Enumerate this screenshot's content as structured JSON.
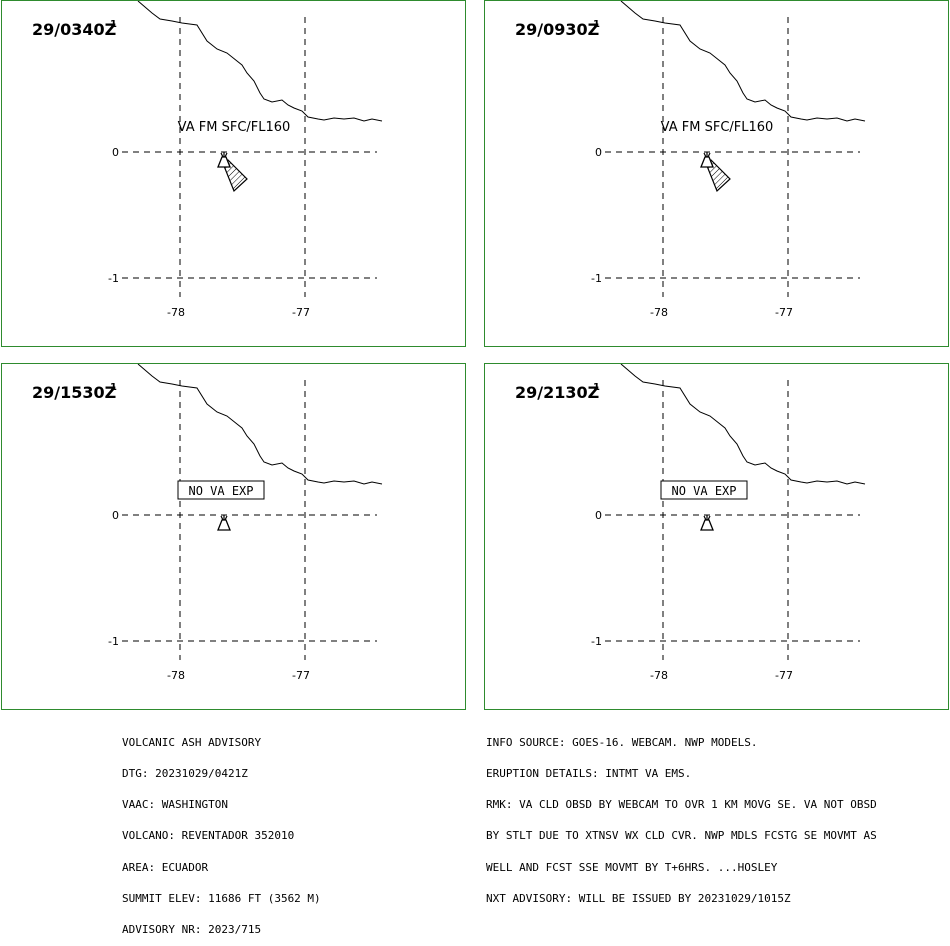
{
  "panels": [
    {
      "time": "29/0340Z",
      "superscript": "1",
      "label": "VA FM SFC/FL160",
      "label_type": "plain",
      "ash_cloud": true
    },
    {
      "time": "29/0930Z",
      "superscript": "1",
      "label": "VA FM SFC/FL160",
      "label_type": "plain",
      "ash_cloud": true
    },
    {
      "time": "29/1530Z",
      "superscript": "1",
      "label": "NO VA EXP",
      "label_type": "boxed",
      "ash_cloud": false
    },
    {
      "time": "29/2130Z",
      "superscript": "1",
      "label": "NO VA EXP",
      "label_type": "boxed",
      "ash_cloud": false
    }
  ],
  "grid": {
    "lat_labels": [
      "0",
      "-1"
    ],
    "lon_labels": [
      "-78",
      "-77"
    ]
  },
  "advisory_left": [
    "VOLCANIC ASH ADVISORY",
    "DTG: 20231029/0421Z",
    "VAAC: WASHINGTON",
    "VOLCANO: REVENTADOR 352010",
    "AREA: ECUADOR",
    "SUMMIT ELEV: 11686 FT (3562 M)",
    "ADVISORY NR: 2023/715"
  ],
  "advisory_right": [
    "INFO SOURCE: GOES-16. WEBCAM. NWP MODELS.",
    "ERUPTION DETAILS: INTMT VA EMS.",
    "RMK: VA CLD OBSD BY WEBCAM TO OVR 1 KM MOVG SE. VA NOT OBSD",
    "BY STLT DUE TO XTNSV WX CLD CVR. NWP MDLS FCSTG SE MOVMT AS",
    "WELL AND FCST SSE MOVMT BY T+6HRS. ...HOSLEY",
    "NXT ADVISORY: WILL BE ISSUED BY 20231029/1015Z"
  ],
  "colors": {
    "panel_border": "#2e8b2e",
    "ink": "#000000"
  },
  "icons": {
    "volcano": "volcano-icon",
    "ash_cloud": "ash-cloud-polygon"
  }
}
